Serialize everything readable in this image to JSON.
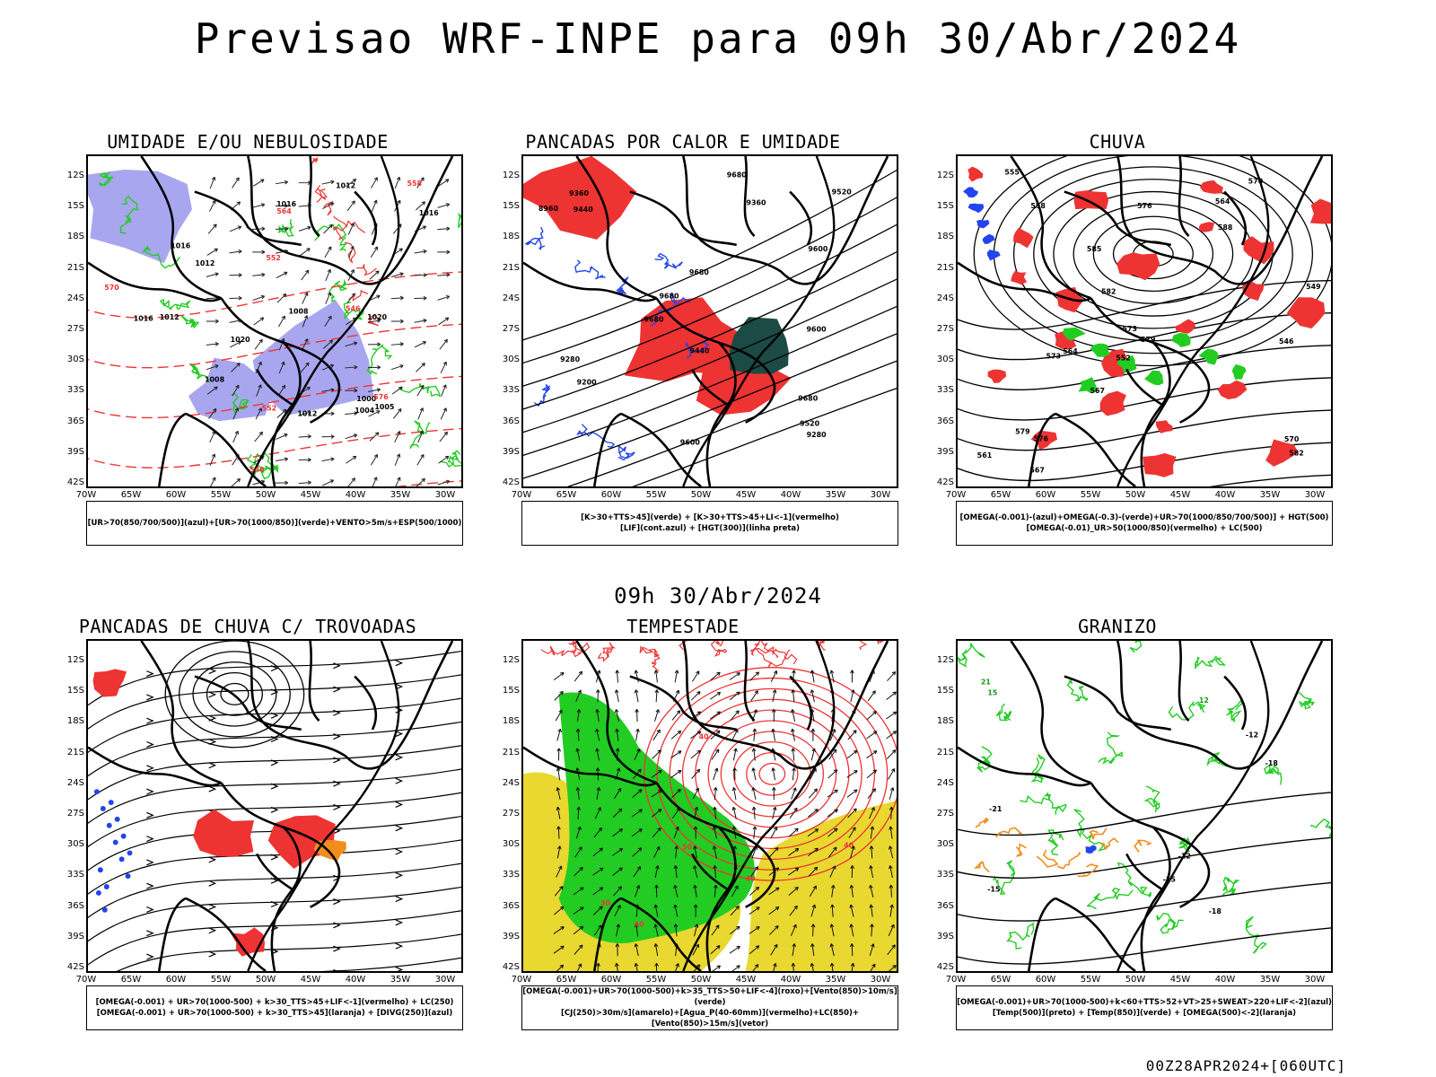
{
  "title": "Previsao WRF-INPE  para 09h 30/Abr/2024",
  "mid_title": "09h 30/Abr/2024",
  "footer": "00Z28APR2024+[060UTC]",
  "lat_ticks": [
    "12S",
    "15S",
    "18S",
    "21S",
    "24S",
    "27S",
    "30S",
    "33S",
    "36S",
    "39S",
    "42S"
  ],
  "lon_ticks": [
    "70W",
    "65W",
    "60W",
    "55W",
    "50W",
    "45W",
    "40W",
    "35W",
    "30W"
  ],
  "colors": {
    "green": "#22cc22",
    "red": "#ee3333",
    "blue": "#2244ee",
    "lavender": "#a9a6f0",
    "yellow": "#e8d830",
    "orange": "#f28c1c",
    "darkgreen": "#1c4a44",
    "purple": "#9922cc"
  },
  "panels": [
    {
      "title": "UMIDADE E/OU NEBULOSIDADE",
      "legend": [
        "[UR>70(850/700/500)](azul)+[UR>70(1000/850)](verde)+VENTO>5m/s+ESP(500/1000)"
      ],
      "labels": [
        {
          "t": "1012",
          "c": "black"
        },
        {
          "t": "1016",
          "c": "black"
        },
        {
          "t": "1012",
          "c": "black"
        },
        {
          "t": "1016",
          "c": "black"
        },
        {
          "t": "1016",
          "c": "black"
        },
        {
          "t": "1012",
          "c": "black"
        },
        {
          "t": "1020",
          "c": "black"
        },
        {
          "t": "1008",
          "c": "black"
        },
        {
          "t": "1016",
          "c": "black"
        },
        {
          "t": "1012",
          "c": "black"
        },
        {
          "t": "1020",
          "c": "black"
        },
        {
          "t": "1004",
          "c": "black"
        },
        {
          "t": "1005",
          "c": "black"
        },
        {
          "t": "1000",
          "c": "black"
        },
        {
          "t": "1008",
          "c": "black"
        },
        {
          "t": "576",
          "c": "red"
        },
        {
          "t": "570",
          "c": "red"
        },
        {
          "t": "564",
          "c": "red"
        },
        {
          "t": "558",
          "c": "red"
        },
        {
          "t": "552",
          "c": "red"
        },
        {
          "t": "546",
          "c": "red"
        },
        {
          "t": "540",
          "c": "red"
        },
        {
          "t": "552",
          "c": "red"
        }
      ]
    },
    {
      "title": "PANCADAS POR CALOR E UMIDADE",
      "legend": [
        "[K>30+TTS>45](verde) + [K>30+TTS>45+LI<-1](vermelho)",
        "[LIF](cont.azul) + [HGT(300)](linha preta)"
      ],
      "labels": [
        {
          "t": "9680",
          "c": "black"
        },
        {
          "t": "9680",
          "c": "black"
        },
        {
          "t": "9680",
          "c": "black"
        },
        {
          "t": "9600",
          "c": "black"
        },
        {
          "t": "9680",
          "c": "black"
        },
        {
          "t": "9680",
          "c": "black"
        },
        {
          "t": "9600",
          "c": "black"
        },
        {
          "t": "9440",
          "c": "black"
        },
        {
          "t": "9360",
          "c": "black"
        },
        {
          "t": "9280",
          "c": "black"
        },
        {
          "t": "9520",
          "c": "black"
        },
        {
          "t": "9600",
          "c": "black"
        },
        {
          "t": "9200",
          "c": "black"
        },
        {
          "t": "9520",
          "c": "black"
        },
        {
          "t": "9440",
          "c": "black"
        },
        {
          "t": "9360",
          "c": "black"
        },
        {
          "t": "9280",
          "c": "black"
        },
        {
          "t": "8960",
          "c": "black"
        }
      ]
    },
    {
      "title": "CHUVA",
      "legend": [
        "[OMEGA(-0.001)-(azul)+OMEGA(-0.3)-(verde)+UR>70(1000/850/700/500)] + HGT(500)",
        "[OMEGA(-0.01)_UR>50(1000/850)(vermelho) + LC(500)"
      ],
      "labels": [
        {
          "t": "588",
          "c": "black"
        },
        {
          "t": "585",
          "c": "black"
        },
        {
          "t": "582",
          "c": "black"
        },
        {
          "t": "579",
          "c": "black"
        },
        {
          "t": "576",
          "c": "black"
        },
        {
          "t": "573",
          "c": "black"
        },
        {
          "t": "570",
          "c": "black"
        },
        {
          "t": "567",
          "c": "black"
        },
        {
          "t": "564",
          "c": "black"
        },
        {
          "t": "561",
          "c": "black"
        },
        {
          "t": "558",
          "c": "black"
        },
        {
          "t": "555",
          "c": "black"
        },
        {
          "t": "552",
          "c": "black"
        },
        {
          "t": "549",
          "c": "black"
        },
        {
          "t": "546",
          "c": "black"
        },
        {
          "t": "582",
          "c": "black"
        },
        {
          "t": "579",
          "c": "black"
        },
        {
          "t": "576",
          "c": "black"
        },
        {
          "t": "573",
          "c": "black"
        },
        {
          "t": "570",
          "c": "black"
        },
        {
          "t": "567",
          "c": "black"
        },
        {
          "t": "564",
          "c": "black"
        }
      ]
    },
    {
      "title": "PANCADAS DE CHUVA C/ TROVOADAS",
      "legend": [
        "[OMEGA(-0.001) + UR>70(1000-500) + k>30_TTS>45+LIF<-1](vermelho) + LC(250)",
        "[OMEGA(-0.001) + UR>70(1000-500) + k>30_TTS>45](laranja) + [DIVG(250)](azul)"
      ],
      "labels": []
    },
    {
      "title": "TEMPESTADE",
      "legend": [
        "[OMEGA(-0.001)+UR>70(1000-500)+k>35_TTS>50+LIF<-4](roxo)+[Vento(850)>10m/s](verde)",
        "[CJ(250)>30m/s](amarelo)+[Agua_P(40-60mm)](vermelho)+LC(850)+[Vento(850)>15m/s](vetor)"
      ],
      "labels": [
        {
          "t": "40",
          "c": "red"
        },
        {
          "t": "40",
          "c": "red"
        },
        {
          "t": "30",
          "c": "red"
        },
        {
          "t": "40",
          "c": "red"
        },
        {
          "t": "50",
          "c": "red"
        },
        {
          "t": "40",
          "c": "red"
        }
      ]
    },
    {
      "title": "GRANIZO",
      "legend": [
        "[OMEGA(-0.001)+UR>70(1000-500)+k<60+TTS>52+VT>25+SWEAT>220+LIF<-2](azul)",
        "[Temp(500)](preto) + [Temp(850)](verde) + [OMEGA(500)<-2](laranja)"
      ],
      "labels": [
        {
          "t": "-15",
          "c": "black"
        },
        {
          "t": "-15",
          "c": "black"
        },
        {
          "t": "-12",
          "c": "black"
        },
        {
          "t": "-12",
          "c": "black"
        },
        {
          "t": "-21",
          "c": "black"
        },
        {
          "t": "-18",
          "c": "black"
        },
        {
          "t": "-18",
          "c": "black"
        },
        {
          "t": "15",
          "c": "green"
        },
        {
          "t": "21",
          "c": "green"
        },
        {
          "t": "12",
          "c": "green"
        }
      ]
    }
  ]
}
